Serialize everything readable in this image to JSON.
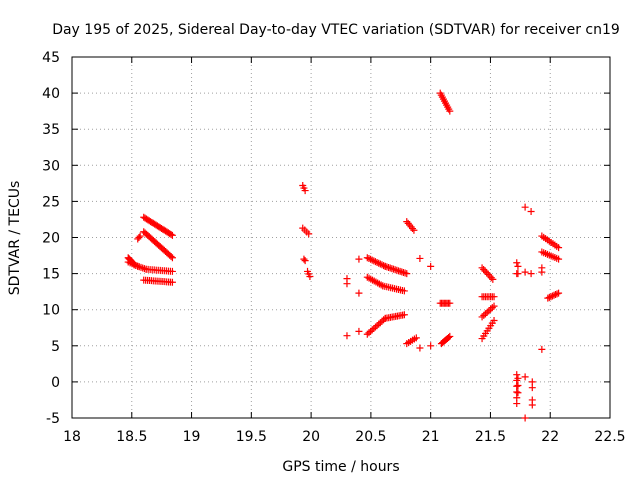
{
  "chart_data": {
    "type": "scatter",
    "title": "Day 195 of 2025, Sidereal Day-to-day VTEC variation (SDTVAR) for receiver cn19",
    "xlabel": "GPS time / hours",
    "ylabel": "SDTVAR / TECUs",
    "xlim": [
      18,
      22.5
    ],
    "ylim": [
      -5,
      45
    ],
    "xticks": [
      "18",
      "18.5",
      "19",
      "19.5",
      "20",
      "20.5",
      "21",
      "21.5",
      "22",
      "22.5"
    ],
    "yticks": [
      "-5",
      "0",
      "5",
      "10",
      "15",
      "20",
      "25",
      "30",
      "35",
      "40",
      "45"
    ],
    "grid": true,
    "marker": "+",
    "color": "#ff0000",
    "segments": [
      {
        "x0": 18.47,
        "y0": 17.2,
        "x1": 18.52,
        "y1": 16.3,
        "n": 8
      },
      {
        "x0": 18.47,
        "y0": 16.6,
        "x1": 18.55,
        "y1": 16.0,
        "n": 6
      },
      {
        "x0": 18.55,
        "y0": 19.8,
        "x1": 18.57,
        "y1": 20.2,
        "n": 3
      },
      {
        "x0": 18.52,
        "y0": 16.2,
        "x1": 18.62,
        "y1": 15.6,
        "n": 8
      },
      {
        "x0": 18.62,
        "y0": 15.6,
        "x1": 18.84,
        "y1": 15.3,
        "n": 14
      },
      {
        "x0": 18.6,
        "y0": 14.1,
        "x1": 18.84,
        "y1": 13.8,
        "n": 16
      },
      {
        "x0": 18.6,
        "y0": 20.8,
        "x1": 18.84,
        "y1": 17.2,
        "n": 22
      },
      {
        "x0": 18.6,
        "y0": 22.8,
        "x1": 18.84,
        "y1": 20.3,
        "n": 22
      },
      {
        "x0": 19.93,
        "y0": 27.2,
        "x1": 19.95,
        "y1": 26.5,
        "n": 3
      },
      {
        "x0": 19.93,
        "y0": 21.3,
        "x1": 19.98,
        "y1": 20.5,
        "n": 4
      },
      {
        "x0": 19.94,
        "y0": 17.0,
        "x1": 19.95,
        "y1": 16.8,
        "n": 2
      },
      {
        "x0": 19.97,
        "y0": 15.3,
        "x1": 19.99,
        "y1": 14.6,
        "n": 3
      },
      {
        "x0": 20.3,
        "y0": 14.3,
        "x1": 20.3,
        "y1": 13.6,
        "n": 2
      },
      {
        "x0": 20.3,
        "y0": 6.4,
        "x1": 20.3,
        "y1": 6.4,
        "n": 1
      },
      {
        "x0": 20.4,
        "y0": 12.3,
        "x1": 20.4,
        "y1": 12.3,
        "n": 1
      },
      {
        "x0": 20.4,
        "y0": 17.0,
        "x1": 20.4,
        "y1": 17.0,
        "n": 1
      },
      {
        "x0": 20.4,
        "y0": 7.0,
        "x1": 20.4,
        "y1": 7.0,
        "n": 1
      },
      {
        "x0": 20.47,
        "y0": 6.6,
        "x1": 20.62,
        "y1": 8.8,
        "n": 12
      },
      {
        "x0": 20.62,
        "y0": 8.8,
        "x1": 20.78,
        "y1": 9.3,
        "n": 12
      },
      {
        "x0": 20.47,
        "y0": 14.5,
        "x1": 20.6,
        "y1": 13.3,
        "n": 10
      },
      {
        "x0": 20.6,
        "y0": 13.3,
        "x1": 20.78,
        "y1": 12.6,
        "n": 12
      },
      {
        "x0": 20.47,
        "y0": 17.2,
        "x1": 20.62,
        "y1": 16.0,
        "n": 12
      },
      {
        "x0": 20.62,
        "y0": 16.0,
        "x1": 20.8,
        "y1": 15.0,
        "n": 14
      },
      {
        "x0": 20.8,
        "y0": 22.2,
        "x1": 20.86,
        "y1": 21.0,
        "n": 6
      },
      {
        "x0": 20.8,
        "y0": 5.3,
        "x1": 20.88,
        "y1": 6.1,
        "n": 6
      },
      {
        "x0": 20.91,
        "y0": 17.1,
        "x1": 20.91,
        "y1": 17.1,
        "n": 1
      },
      {
        "x0": 20.91,
        "y0": 4.7,
        "x1": 20.91,
        "y1": 4.7,
        "n": 1
      },
      {
        "x0": 21.0,
        "y0": 16.0,
        "x1": 21.0,
        "y1": 16.0,
        "n": 1
      },
      {
        "x0": 21.0,
        "y0": 5.0,
        "x1": 21.0,
        "y1": 5.0,
        "n": 1
      },
      {
        "x0": 21.08,
        "y0": 40.0,
        "x1": 21.16,
        "y1": 37.5,
        "n": 10
      },
      {
        "x0": 21.08,
        "y0": 10.9,
        "x1": 21.16,
        "y1": 10.9,
        "n": 8
      },
      {
        "x0": 21.09,
        "y0": 5.3,
        "x1": 21.16,
        "y1": 6.3,
        "n": 8
      },
      {
        "x0": 21.43,
        "y0": 15.8,
        "x1": 21.52,
        "y1": 14.2,
        "n": 8
      },
      {
        "x0": 21.43,
        "y0": 11.8,
        "x1": 21.53,
        "y1": 11.8,
        "n": 8
      },
      {
        "x0": 21.43,
        "y0": 9.0,
        "x1": 21.53,
        "y1": 10.5,
        "n": 8
      },
      {
        "x0": 21.43,
        "y0": 6.0,
        "x1": 21.53,
        "y1": 8.5,
        "n": 8
      },
      {
        "x0": 21.72,
        "y0": 16.5,
        "x1": 21.73,
        "y1": 16.0,
        "n": 2
      },
      {
        "x0": 21.72,
        "y0": 15.0,
        "x1": 21.73,
        "y1": 15.0,
        "n": 2
      },
      {
        "x0": 21.72,
        "y0": 1.0,
        "x1": 21.72,
        "y1": -3.0,
        "n": 6
      },
      {
        "x0": 21.73,
        "y0": 0.5,
        "x1": 21.73,
        "y1": -1.5,
        "n": 3
      },
      {
        "x0": 21.79,
        "y0": 24.2,
        "x1": 21.79,
        "y1": 24.2,
        "n": 1
      },
      {
        "x0": 21.84,
        "y0": 23.6,
        "x1": 21.84,
        "y1": 23.6,
        "n": 1
      },
      {
        "x0": 21.79,
        "y0": 15.2,
        "x1": 21.79,
        "y1": 15.2,
        "n": 1
      },
      {
        "x0": 21.84,
        "y0": 15.0,
        "x1": 21.84,
        "y1": 15.0,
        "n": 1
      },
      {
        "x0": 21.79,
        "y0": 0.7,
        "x1": 21.79,
        "y1": 0.7,
        "n": 1
      },
      {
        "x0": 21.79,
        "y0": -5.0,
        "x1": 21.79,
        "y1": -5.0,
        "n": 1
      },
      {
        "x0": 21.85,
        "y0": 0.0,
        "x1": 21.85,
        "y1": -0.8,
        "n": 2
      },
      {
        "x0": 21.85,
        "y0": -2.5,
        "x1": 21.85,
        "y1": -3.2,
        "n": 2
      },
      {
        "x0": 21.93,
        "y0": 15.8,
        "x1": 21.93,
        "y1": 15.2,
        "n": 2
      },
      {
        "x0": 21.93,
        "y0": 4.5,
        "x1": 21.93,
        "y1": 4.5,
        "n": 1
      },
      {
        "x0": 21.93,
        "y0": 20.2,
        "x1": 22.07,
        "y1": 18.6,
        "n": 10
      },
      {
        "x0": 21.93,
        "y0": 18.0,
        "x1": 22.07,
        "y1": 17.0,
        "n": 10
      },
      {
        "x0": 21.98,
        "y0": 11.6,
        "x1": 22.07,
        "y1": 12.3,
        "n": 8
      }
    ]
  }
}
